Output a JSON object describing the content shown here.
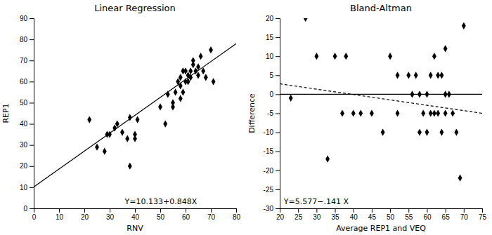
{
  "chart_data": [
    {
      "type": "scatter",
      "title": "Linear Regression",
      "x_label": "RNV",
      "y_label": "REP1",
      "xlim": [
        0,
        80
      ],
      "ylim": [
        0,
        90
      ],
      "xticks": [
        0,
        10,
        20,
        30,
        40,
        50,
        60,
        70,
        80
      ],
      "yticks": [
        0,
        10,
        20,
        30,
        40,
        50,
        60,
        70,
        80,
        90
      ],
      "grid": false,
      "annotation": "Y=10.133+0.848X",
      "series": [
        {
          "type": "scatter",
          "color": "black",
          "marker": "diamond",
          "x": [
            22,
            25,
            28,
            29,
            30,
            32,
            33,
            35,
            37,
            38,
            40,
            40,
            41,
            38,
            50,
            52,
            53,
            55,
            55,
            56,
            57,
            58,
            58,
            58,
            59,
            59,
            60,
            60,
            61,
            61,
            62,
            62,
            63,
            63,
            64,
            65,
            65,
            66,
            67,
            68,
            70,
            71
          ],
          "values": [
            42,
            29,
            27,
            35,
            35,
            38,
            40,
            36,
            33,
            43,
            35,
            33,
            42,
            20,
            48,
            40,
            54,
            50,
            48,
            55,
            60,
            62,
            58,
            52,
            65,
            55,
            60,
            65,
            63,
            60,
            65,
            62,
            68,
            70,
            65,
            67,
            63,
            72,
            65,
            62,
            75,
            60
          ]
        },
        {
          "type": "line",
          "color": "black",
          "line_style": "solid",
          "x": [
            0,
            80
          ],
          "values": [
            10.133,
            77.973
          ]
        }
      ]
    },
    {
      "type": "scatter",
      "title": "Bland-Altman",
      "x_label": "Average REP1 and VEQ",
      "y_label": "Difference",
      "xlim": [
        20,
        75
      ],
      "ylim": [
        -30,
        20
      ],
      "xticks": [
        20,
        25,
        30,
        35,
        40,
        45,
        50,
        55,
        60,
        65,
        70,
        75
      ],
      "yticks": [
        -30,
        -25,
        -20,
        -15,
        -10,
        -5,
        0,
        5,
        10,
        15,
        20
      ],
      "grid": false,
      "annotation": "Y=5.577−.141 X",
      "series": [
        {
          "type": "scatter",
          "color": "black",
          "marker": "diamond",
          "x": [
            23,
            27,
            30,
            33,
            35,
            37,
            38,
            40,
            42,
            45,
            48,
            50,
            52,
            52,
            55,
            56,
            57,
            58,
            58,
            59,
            60,
            60,
            61,
            61,
            62,
            62,
            63,
            63,
            64,
            64,
            65,
            65,
            65,
            66,
            67,
            68,
            69,
            70
          ],
          "values": [
            -1,
            20,
            10,
            -17,
            10,
            -5,
            10,
            -5,
            -5,
            -5,
            -10,
            10,
            5,
            -5,
            5,
            0,
            5,
            0,
            -10,
            -5,
            0,
            -10,
            5,
            -5,
            10,
            -5,
            5,
            -5,
            -10,
            5,
            0,
            -5,
            12,
            0,
            -5,
            -10,
            -22,
            18
          ]
        },
        {
          "type": "line",
          "color": "black",
          "line_style": "solid",
          "x": [
            20,
            75
          ],
          "values": [
            0,
            0
          ]
        },
        {
          "type": "line",
          "color": "black",
          "line_style": "dashed",
          "x": [
            20,
            75
          ],
          "values": [
            2.757,
            -4.998
          ]
        }
      ]
    }
  ]
}
